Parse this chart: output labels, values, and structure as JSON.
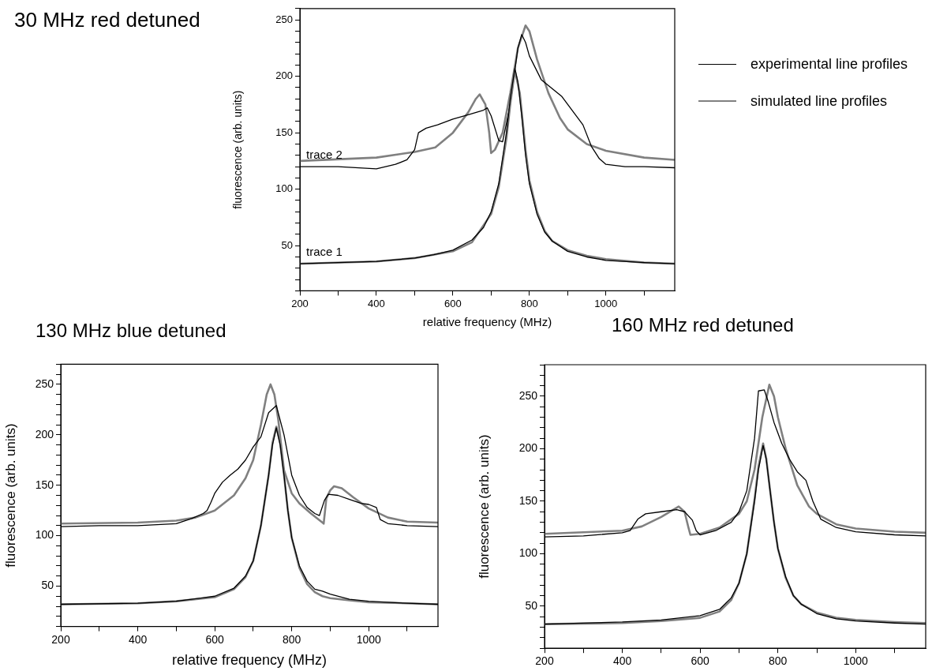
{
  "chart_data": [
    {
      "type": "line",
      "title": "30 MHz red detuned",
      "xlabel": "relative frequency (MHz)",
      "ylabel": "fluorescence (arb. units)",
      "xlim": [
        200,
        1180
      ],
      "xticks": [
        200,
        {
          "value": 300,
          "label": null
        },
        400,
        {
          "value": 500,
          "label": null
        },
        600,
        {
          "value": 700,
          "label": null
        },
        800,
        {
          "value": 900,
          "label": null
        },
        1000,
        {
          "value": 1100,
          "label": null
        }
      ],
      "ylim": [
        10,
        260
      ],
      "yticks": [
        {
          "value": 10,
          "label": null
        },
        {
          "value": 20,
          "label": null
        },
        {
          "value": 30,
          "label": null
        },
        {
          "value": 40,
          "label": null
        },
        50,
        {
          "value": 60,
          "label": null
        },
        {
          "value": 70,
          "label": null
        },
        {
          "value": 80,
          "label": null
        },
        {
          "value": 90,
          "label": null
        },
        100,
        {
          "value": 110,
          "label": null
        },
        {
          "value": 120,
          "label": null
        },
        {
          "value": 130,
          "label": null
        },
        {
          "value": 140,
          "label": null
        },
        150,
        {
          "value": 160,
          "label": null
        },
        {
          "value": 170,
          "label": null
        },
        {
          "value": 180,
          "label": null
        },
        {
          "value": 190,
          "label": null
        },
        200,
        {
          "value": 210,
          "label": null
        },
        {
          "value": 220,
          "label": null
        },
        {
          "value": 230,
          "label": null
        },
        {
          "value": 240,
          "label": null
        },
        250,
        {
          "value": 260,
          "label": null
        }
      ],
      "legend": "right",
      "annotations": [
        {
          "text": "trace 2",
          "x": 200,
          "y": 120
        },
        {
          "text": "trace 1",
          "x": 200,
          "y": 34
        }
      ],
      "series": [
        {
          "name": "experimental line profiles",
          "color": "#000000",
          "x": [
            200,
            300,
            400,
            500,
            550,
            600,
            650,
            680,
            700,
            720,
            740,
            750,
            762,
            770,
            780,
            790,
            800,
            820,
            840,
            860,
            900,
            950,
            1000,
            1100,
            1180
          ],
          "values": [
            34,
            35,
            36,
            39,
            42,
            46,
            55,
            66,
            80,
            105,
            150,
            180,
            207,
            195,
            165,
            130,
            105,
            78,
            62,
            54,
            45,
            40,
            37,
            35,
            34
          ]
        },
        {
          "name": "simulated line profiles",
          "color": "#808080",
          "x": [
            200,
            400,
            500,
            600,
            650,
            700,
            720,
            740,
            750,
            762,
            775,
            790,
            800,
            820,
            840,
            860,
            900,
            950,
            1000,
            1100,
            1180
          ],
          "values": [
            34,
            36,
            39,
            45,
            53,
            78,
            102,
            145,
            175,
            205,
            185,
            135,
            108,
            80,
            63,
            54,
            46,
            41,
            38,
            35,
            34
          ]
        },
        {
          "color": "#000000",
          "x": [
            200,
            300,
            400,
            450,
            480,
            500,
            510,
            530,
            560,
            600,
            640,
            680,
            690,
            700,
            720,
            730,
            750,
            770,
            780,
            790,
            800,
            831,
            885,
            940,
            962,
            983,
            1000,
            1050,
            1100,
            1180
          ],
          "values": [
            120,
            120,
            118,
            122,
            126,
            135,
            150,
            154,
            157,
            162,
            166,
            170,
            172,
            165,
            143,
            142,
            175,
            225,
            237,
            230,
            218,
            197,
            182,
            157,
            138,
            127,
            122,
            120,
            120,
            119
          ]
        },
        {
          "color": "#808080",
          "x": [
            200,
            400,
            500,
            554,
            600,
            640,
            660,
            670,
            685,
            695,
            700,
            710,
            730,
            750,
            770,
            790,
            800,
            820,
            850,
            880,
            900,
            950,
            1000,
            1100,
            1180
          ],
          "values": [
            125,
            128,
            133,
            137,
            150,
            168,
            180,
            184,
            175,
            150,
            132,
            135,
            150,
            185,
            225,
            245,
            240,
            215,
            185,
            163,
            153,
            140,
            134,
            128,
            126
          ]
        }
      ]
    },
    {
      "type": "line",
      "title": "130 MHz blue detuned",
      "xlabel": "relative frequency (MHz)",
      "ylabel": "fluorescence (arb. units)",
      "xlim": [
        200,
        1180
      ],
      "xticks": [
        200,
        {
          "value": 300,
          "label": null
        },
        400,
        {
          "value": 500,
          "label": null
        },
        600,
        {
          "value": 700,
          "label": null
        },
        800,
        {
          "value": 900,
          "label": null
        },
        1000,
        {
          "value": 1100,
          "label": null
        }
      ],
      "ylim": [
        10,
        270
      ],
      "yticks": [
        {
          "value": 10,
          "label": null
        },
        {
          "value": 20,
          "label": null
        },
        {
          "value": 30,
          "label": null
        },
        {
          "value": 40,
          "label": null
        },
        50,
        {
          "value": 60,
          "label": null
        },
        {
          "value": 70,
          "label": null
        },
        {
          "value": 80,
          "label": null
        },
        {
          "value": 90,
          "label": null
        },
        100,
        {
          "value": 110,
          "label": null
        },
        {
          "value": 120,
          "label": null
        },
        {
          "value": 130,
          "label": null
        },
        {
          "value": 140,
          "label": null
        },
        150,
        {
          "value": 160,
          "label": null
        },
        {
          "value": 170,
          "label": null
        },
        {
          "value": 180,
          "label": null
        },
        {
          "value": 190,
          "label": null
        },
        200,
        {
          "value": 210,
          "label": null
        },
        {
          "value": 220,
          "label": null
        },
        {
          "value": 230,
          "label": null
        },
        {
          "value": 240,
          "label": null
        },
        250,
        {
          "value": 260,
          "label": null
        },
        {
          "value": 270,
          "label": null
        }
      ],
      "series": [
        {
          "color": "#000000",
          "x": [
            200,
            400,
            500,
            600,
            650,
            680,
            700,
            720,
            740,
            750,
            760,
            770,
            780,
            790,
            800,
            820,
            840,
            860,
            880,
            900,
            950,
            1000,
            1100,
            1180
          ],
          "values": [
            32,
            33,
            35,
            40,
            48,
            60,
            75,
            110,
            160,
            190,
            207,
            190,
            160,
            125,
            98,
            70,
            55,
            47,
            45,
            42,
            37,
            35,
            33,
            32
          ]
        },
        {
          "color": "#808080",
          "x": [
            200,
            400,
            500,
            600,
            650,
            680,
            700,
            720,
            740,
            750,
            760,
            770,
            780,
            790,
            800,
            820,
            840,
            860,
            880,
            900,
            950,
            1000,
            1100,
            1180
          ],
          "values": [
            32,
            33,
            35,
            39,
            47,
            59,
            75,
            110,
            160,
            192,
            208,
            192,
            160,
            125,
            98,
            68,
            52,
            44,
            40,
            38,
            36,
            34,
            33,
            32
          ]
        },
        {
          "color": "#000000",
          "x": [
            200,
            300,
            400,
            500,
            540,
            570,
            580,
            590,
            600,
            620,
            640,
            660,
            680,
            700,
            720,
            740,
            760,
            780,
            800,
            820,
            840,
            860,
            872,
            885,
            895,
            920,
            950,
            980,
            1000,
            1020,
            1030,
            1050,
            1100,
            1180
          ],
          "values": [
            109,
            110,
            110,
            112,
            117,
            122,
            125,
            133,
            142,
            153,
            160,
            166,
            175,
            188,
            198,
            222,
            229,
            200,
            160,
            140,
            128,
            122,
            120,
            135,
            141,
            140,
            136,
            132,
            131,
            128,
            116,
            112,
            110,
            109
          ]
        },
        {
          "color": "#808080",
          "x": [
            200,
            400,
            500,
            550,
            600,
            650,
            680,
            700,
            720,
            735,
            745,
            755,
            765,
            780,
            800,
            820,
            850,
            880,
            883,
            890,
            900,
            910,
            930,
            960,
            1000,
            1050,
            1100,
            1180
          ],
          "values": [
            112,
            113,
            115,
            118,
            125,
            140,
            157,
            175,
            210,
            240,
            250,
            240,
            215,
            165,
            142,
            132,
            122,
            113,
            112,
            137,
            145,
            149,
            147,
            138,
            127,
            118,
            114,
            113
          ]
        }
      ]
    },
    {
      "type": "line",
      "title": "160 MHz red detuned",
      "ylabel": "fluorescence (arb. units)",
      "xlim": [
        200,
        1180
      ],
      "xticks": [
        200,
        {
          "value": 300,
          "label": null
        },
        400,
        {
          "value": 500,
          "label": null
        },
        600,
        {
          "value": 700,
          "label": null
        },
        800,
        {
          "value": 900,
          "label": null
        },
        1000,
        {
          "value": 1100,
          "label": null
        }
      ],
      "ylim": [
        10,
        280
      ],
      "yticks": [
        {
          "value": 10,
          "label": null
        },
        {
          "value": 20,
          "label": null
        },
        {
          "value": 30,
          "label": null
        },
        {
          "value": 40,
          "label": null
        },
        50,
        {
          "value": 60,
          "label": null
        },
        {
          "value": 70,
          "label": null
        },
        {
          "value": 80,
          "label": null
        },
        {
          "value": 90,
          "label": null
        },
        100,
        {
          "value": 110,
          "label": null
        },
        {
          "value": 120,
          "label": null
        },
        {
          "value": 130,
          "label": null
        },
        {
          "value": 140,
          "label": null
        },
        150,
        {
          "value": 160,
          "label": null
        },
        {
          "value": 170,
          "label": null
        },
        {
          "value": 180,
          "label": null
        },
        {
          "value": 190,
          "label": null
        },
        200,
        {
          "value": 210,
          "label": null
        },
        {
          "value": 220,
          "label": null
        },
        {
          "value": 230,
          "label": null
        },
        {
          "value": 240,
          "label": null
        },
        250,
        {
          "value": 260,
          "label": null
        },
        {
          "value": 270,
          "label": null
        },
        {
          "value": 280,
          "label": null
        }
      ],
      "series": [
        {
          "color": "#000000",
          "x": [
            200,
            400,
            500,
            600,
            650,
            680,
            700,
            720,
            740,
            750,
            762,
            770,
            780,
            790,
            800,
            820,
            840,
            860,
            900,
            950,
            1000,
            1100,
            1180
          ],
          "values": [
            33,
            35,
            37,
            41,
            47,
            58,
            72,
            100,
            150,
            180,
            203,
            190,
            160,
            130,
            105,
            78,
            60,
            52,
            43,
            38,
            36,
            34,
            33
          ]
        },
        {
          "color": "#808080",
          "x": [
            200,
            400,
            500,
            600,
            650,
            680,
            700,
            720,
            740,
            750,
            762,
            770,
            780,
            790,
            800,
            820,
            840,
            860,
            900,
            950,
            1000,
            1100,
            1180
          ],
          "values": [
            33,
            34,
            36,
            39,
            45,
            56,
            72,
            100,
            152,
            183,
            205,
            191,
            160,
            130,
            105,
            77,
            60,
            52,
            44,
            39,
            37,
            35,
            34
          ]
        },
        {
          "color": "#000000",
          "x": [
            200,
            300,
            400,
            420,
            440,
            460,
            500,
            540,
            560,
            580,
            590,
            600,
            640,
            680,
            700,
            720,
            740,
            750,
            765,
            775,
            790,
            810,
            830,
            850,
            872,
            890,
            910,
            950,
            1000,
            1100,
            1180
          ],
          "values": [
            116,
            117,
            120,
            122,
            133,
            138,
            140,
            142,
            140,
            132,
            122,
            118,
            122,
            130,
            140,
            160,
            210,
            255,
            256,
            245,
            225,
            205,
            190,
            178,
            170,
            150,
            133,
            125,
            121,
            118,
            117
          ]
        },
        {
          "color": "#808080",
          "x": [
            200,
            400,
            450,
            500,
            545,
            560,
            570,
            575,
            600,
            650,
            700,
            720,
            740,
            760,
            778,
            790,
            800,
            820,
            850,
            880,
            900,
            950,
            1000,
            1100,
            1180
          ],
          "values": [
            119,
            122,
            126,
            135,
            145,
            140,
            125,
            118,
            119,
            125,
            138,
            150,
            180,
            230,
            261,
            250,
            230,
            200,
            165,
            145,
            138,
            128,
            124,
            121,
            120
          ]
        }
      ]
    }
  ]
}
